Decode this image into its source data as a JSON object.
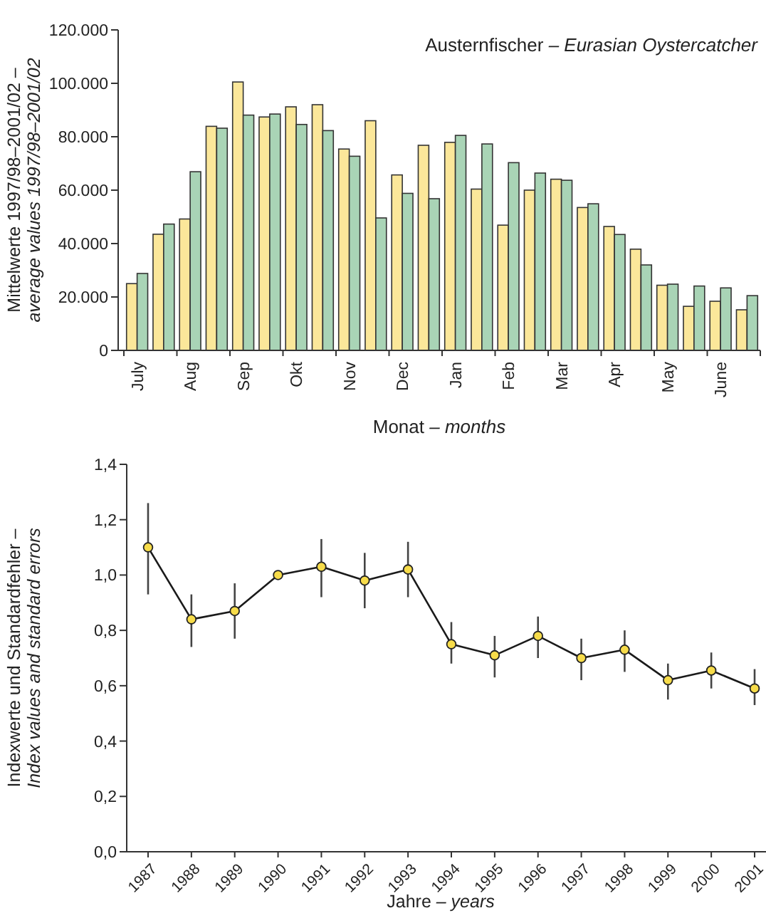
{
  "chart_data": [
    {
      "type": "bar",
      "title": "Austernfischer – Eurasian Oystercatcher",
      "ylabel": "Mittelwerte 1997/98–2001/02 –\naverage values 1997/98–2001/02",
      "xlabel": "Monat – months",
      "categories": [
        "July",
        null,
        "Aug",
        null,
        "Sep",
        null,
        "Okt",
        null,
        "Nov",
        null,
        "Dec",
        null,
        "Jan",
        null,
        "Feb",
        null,
        "Mar",
        null,
        "Apr",
        null,
        "May",
        null,
        "June",
        null
      ],
      "series": [
        {
          "color": "#fbe79a",
          "values": [
            25000,
            43500,
            49200,
            83900,
            100500,
            87400,
            91200,
            92000,
            75400,
            86000,
            65700,
            76800,
            77900,
            60400,
            46900,
            60000,
            64100,
            53500,
            46400,
            37900,
            24400,
            16500,
            18400,
            15200
          ]
        },
        {
          "color": "#a9d4b6",
          "values": [
            28800,
            47300,
            66900,
            83200,
            88100,
            88500,
            84600,
            82300,
            72700,
            49600,
            58800,
            56800,
            80500,
            77300,
            70300,
            66400,
            63700,
            54900,
            43400,
            32000,
            24800,
            24100,
            23400,
            20500
          ]
        }
      ],
      "ylim": [
        0,
        120000
      ],
      "yticks": [
        {
          "value": 0,
          "label": "0"
        },
        {
          "value": 20000,
          "label": "20.000"
        },
        {
          "value": 40000,
          "label": "40.000"
        },
        {
          "value": 60000,
          "label": "60.000"
        },
        {
          "value": 80000,
          "label": "80.000"
        },
        {
          "value": 100000,
          "label": "100.000"
        },
        {
          "value": 120000,
          "label": "120.000"
        }
      ]
    },
    {
      "type": "line",
      "ylabel": "Indexwerte und Standardfehler –\nIndex values and standard errors",
      "xlabel": "Jahre – years",
      "marker": "circle",
      "categories": [
        "1987",
        "1988",
        "1989",
        "1990",
        "1991",
        "1992",
        "1993",
        "1994",
        "1995",
        "1996",
        "1997",
        "1998",
        "1999",
        "2000",
        "2001"
      ],
      "series": [
        {
          "color": "#1a1a1a",
          "colors": [
            "#f7dc4a",
            "#f7dc4a",
            "#f7dc4a",
            "#f7dc4a",
            "#f7dc4a",
            "#f7dc4a",
            "#f7dc4a",
            "#f7dc4a",
            "#f7dc4a",
            "#f7dc4a",
            "#f7dc4a",
            "#f7dc4a",
            "#f7dc4a",
            "#f7dc4a",
            "#f7dc4a"
          ],
          "values": [
            1.1,
            0.84,
            0.87,
            1.0,
            1.03,
            0.98,
            1.02,
            0.75,
            0.71,
            0.78,
            0.7,
            0.73,
            0.62,
            0.655,
            0.59
          ],
          "errors": [
            [
              0.93,
              1.26
            ],
            [
              0.74,
              0.93
            ],
            [
              0.77,
              0.97
            ],
            null,
            [
              0.92,
              1.13
            ],
            [
              0.88,
              1.08
            ],
            [
              0.92,
              1.12
            ],
            [
              0.68,
              0.83
            ],
            [
              0.63,
              0.78
            ],
            [
              0.7,
              0.85
            ],
            [
              0.62,
              0.77
            ],
            [
              0.65,
              0.8
            ],
            [
              0.55,
              0.68
            ],
            [
              0.59,
              0.72
            ],
            [
              0.53,
              0.66
            ]
          ]
        }
      ],
      "ylim": [
        0,
        1.4
      ],
      "yticks": [
        {
          "value": 0,
          "label": "0,0"
        },
        {
          "value": 0.2,
          "label": "0,2"
        },
        {
          "value": 0.4,
          "label": "0,4"
        },
        {
          "value": 0.6,
          "label": "0,6"
        },
        {
          "value": 0.8,
          "label": "0,8"
        },
        {
          "value": 1.0,
          "label": "1,0"
        },
        {
          "value": 1.2,
          "label": "1,2"
        },
        {
          "value": 1.4,
          "label": "1,4"
        }
      ]
    }
  ]
}
